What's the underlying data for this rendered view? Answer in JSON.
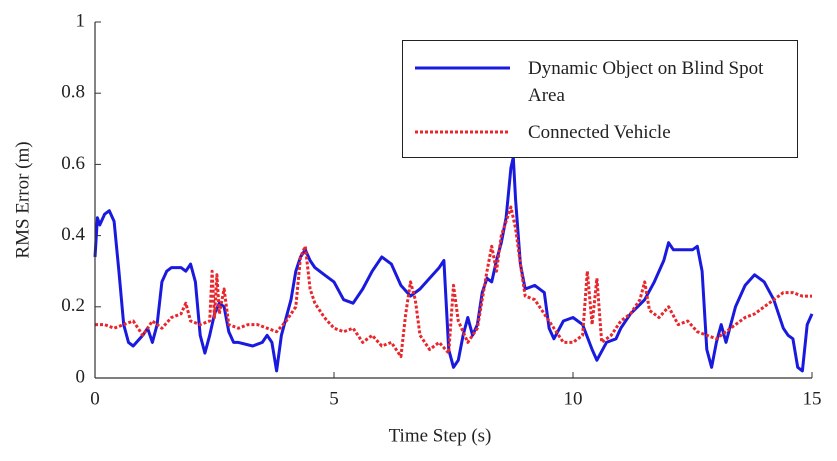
{
  "chart_data": {
    "type": "line",
    "xlabel": "Time Step (s)",
    "ylabel": "RMS Error (m)",
    "xlim": [
      0,
      15
    ],
    "xticks": [
      0,
      5,
      10,
      15
    ],
    "ylim": [
      0,
      1
    ],
    "yticks": [
      0,
      0.2,
      0.4,
      0.6,
      0.8,
      1
    ],
    "series": [
      {
        "name": "Dynamic Object on Blind Spot Area",
        "color": "#1a1adf",
        "style": "solid",
        "x": [
          0,
          0.05,
          0.1,
          0.2,
          0.3,
          0.4,
          0.5,
          0.6,
          0.7,
          0.8,
          1.0,
          1.1,
          1.2,
          1.3,
          1.4,
          1.5,
          1.6,
          1.8,
          1.9,
          2.0,
          2.1,
          2.2,
          2.3,
          2.4,
          2.5,
          2.6,
          2.7,
          2.8,
          2.9,
          3.0,
          3.3,
          3.5,
          3.6,
          3.7,
          3.8,
          3.9,
          4.0,
          4.1,
          4.2,
          4.3,
          4.4,
          4.5,
          4.6,
          4.8,
          5.0,
          5.2,
          5.4,
          5.6,
          5.8,
          6.0,
          6.2,
          6.4,
          6.6,
          6.8,
          7.0,
          7.2,
          7.3,
          7.4,
          7.5,
          7.6,
          7.7,
          7.8,
          7.9,
          8.0,
          8.1,
          8.2,
          8.3,
          8.4,
          8.5,
          8.6,
          8.7,
          8.75,
          8.8,
          8.9,
          9.0,
          9.2,
          9.4,
          9.5,
          9.6,
          9.8,
          10.0,
          10.2,
          10.4,
          10.5,
          10.7,
          10.9,
          11.0,
          11.2,
          11.5,
          11.7,
          11.9,
          12.0,
          12.1,
          12.3,
          12.5,
          12.6,
          12.7,
          12.8,
          12.9,
          13.0,
          13.1,
          13.2,
          13.4,
          13.6,
          13.8,
          14.0,
          14.2,
          14.4,
          14.5,
          14.6,
          14.7,
          14.8,
          14.9,
          15.0
        ],
        "values": [
          0.34,
          0.45,
          0.43,
          0.46,
          0.47,
          0.44,
          0.3,
          0.15,
          0.1,
          0.09,
          0.12,
          0.14,
          0.1,
          0.15,
          0.27,
          0.3,
          0.31,
          0.31,
          0.3,
          0.32,
          0.27,
          0.12,
          0.07,
          0.12,
          0.18,
          0.21,
          0.2,
          0.13,
          0.1,
          0.1,
          0.09,
          0.1,
          0.12,
          0.1,
          0.02,
          0.12,
          0.17,
          0.22,
          0.3,
          0.34,
          0.36,
          0.33,
          0.31,
          0.29,
          0.27,
          0.22,
          0.21,
          0.25,
          0.3,
          0.34,
          0.32,
          0.26,
          0.23,
          0.25,
          0.28,
          0.31,
          0.33,
          0.08,
          0.03,
          0.05,
          0.12,
          0.17,
          0.12,
          0.15,
          0.24,
          0.28,
          0.27,
          0.33,
          0.38,
          0.45,
          0.59,
          0.62,
          0.5,
          0.32,
          0.25,
          0.26,
          0.24,
          0.14,
          0.11,
          0.16,
          0.17,
          0.15,
          0.08,
          0.05,
          0.1,
          0.11,
          0.14,
          0.18,
          0.22,
          0.27,
          0.33,
          0.38,
          0.36,
          0.36,
          0.36,
          0.37,
          0.3,
          0.08,
          0.03,
          0.1,
          0.15,
          0.1,
          0.2,
          0.26,
          0.29,
          0.27,
          0.22,
          0.14,
          0.12,
          0.11,
          0.03,
          0.02,
          0.15,
          0.18
        ]
      },
      {
        "name": "Connected Vehicle",
        "color": "#e8262b",
        "style": "dotted",
        "x": [
          0,
          0.2,
          0.4,
          0.6,
          0.8,
          1.0,
          1.2,
          1.4,
          1.6,
          1.8,
          1.9,
          2.0,
          2.2,
          2.4,
          2.45,
          2.5,
          2.55,
          2.6,
          2.7,
          2.8,
          3.0,
          3.2,
          3.4,
          3.6,
          3.8,
          4.0,
          4.2,
          4.3,
          4.4,
          4.5,
          4.6,
          4.8,
          5.0,
          5.2,
          5.4,
          5.6,
          5.8,
          6.0,
          6.2,
          6.4,
          6.5,
          6.6,
          6.7,
          6.8,
          7.0,
          7.2,
          7.4,
          7.5,
          7.6,
          7.8,
          8.0,
          8.2,
          8.3,
          8.4,
          8.5,
          8.6,
          8.7,
          8.8,
          8.9,
          9.0,
          9.2,
          9.4,
          9.6,
          9.8,
          10.0,
          10.2,
          10.3,
          10.4,
          10.5,
          10.6,
          10.8,
          11.0,
          11.2,
          11.4,
          11.5,
          11.6,
          11.8,
          12.0,
          12.2,
          12.4,
          12.6,
          12.8,
          13.0,
          13.2,
          13.4,
          13.6,
          13.8,
          14.0,
          14.2,
          14.4,
          14.6,
          14.8,
          15.0
        ],
        "values": [
          0.15,
          0.15,
          0.14,
          0.15,
          0.16,
          0.12,
          0.16,
          0.14,
          0.17,
          0.18,
          0.21,
          0.16,
          0.15,
          0.16,
          0.3,
          0.17,
          0.29,
          0.18,
          0.25,
          0.15,
          0.14,
          0.15,
          0.15,
          0.14,
          0.13,
          0.16,
          0.2,
          0.34,
          0.37,
          0.25,
          0.21,
          0.17,
          0.14,
          0.13,
          0.14,
          0.1,
          0.12,
          0.09,
          0.1,
          0.06,
          0.18,
          0.27,
          0.22,
          0.12,
          0.08,
          0.1,
          0.07,
          0.26,
          0.16,
          0.1,
          0.14,
          0.3,
          0.37,
          0.3,
          0.4,
          0.44,
          0.48,
          0.42,
          0.32,
          0.23,
          0.22,
          0.18,
          0.14,
          0.1,
          0.1,
          0.12,
          0.3,
          0.15,
          0.28,
          0.1,
          0.12,
          0.16,
          0.18,
          0.22,
          0.27,
          0.19,
          0.17,
          0.2,
          0.15,
          0.16,
          0.13,
          0.12,
          0.11,
          0.13,
          0.15,
          0.17,
          0.18,
          0.2,
          0.22,
          0.24,
          0.24,
          0.23,
          0.23
        ]
      }
    ]
  }
}
